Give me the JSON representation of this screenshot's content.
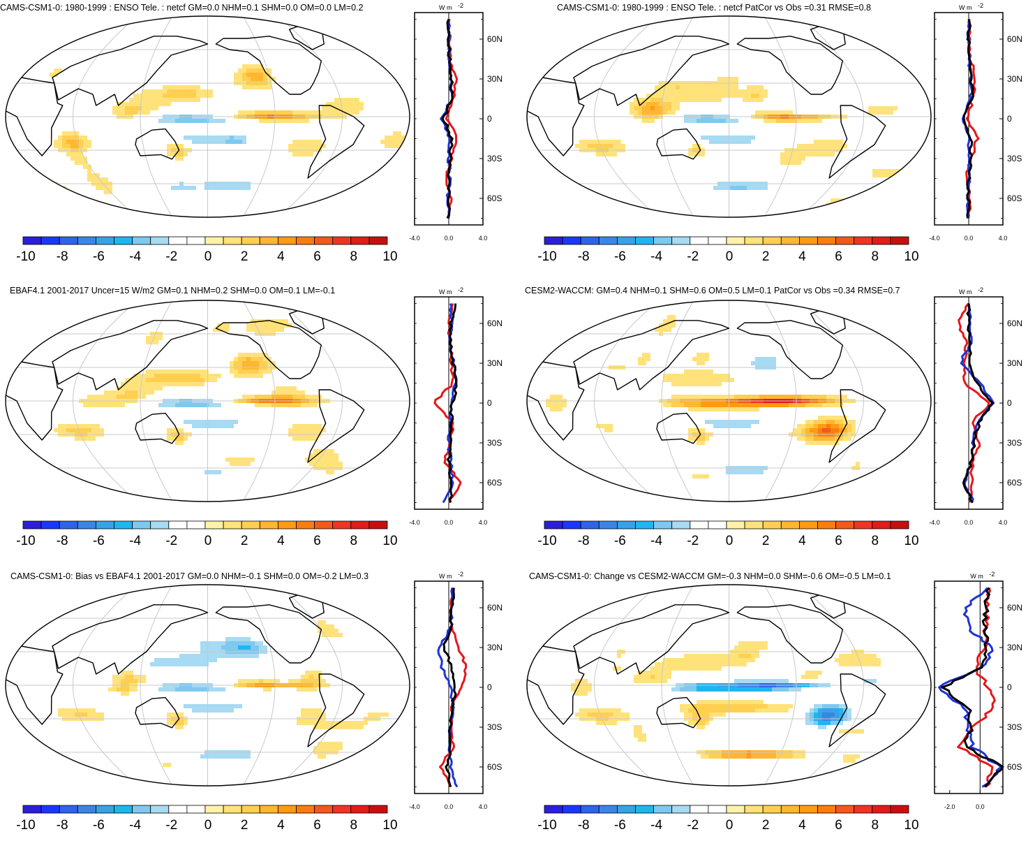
{
  "colors": {
    "red": "#e8141b",
    "blue": "#1e32d6",
    "black": "#000000",
    "grid": "#c8c8c8",
    "colorbar": [
      "#2b1fd9",
      "#1a37ff",
      "#2f63e8",
      "#3b85e6",
      "#37a3e6",
      "#1fb6f0",
      "#7fc8ef",
      "#a7daf3",
      "#ffffff",
      "#ffffff",
      "#fff2a8",
      "#ffe27a",
      "#ffcf52",
      "#ffb631",
      "#ff9b12",
      "#f97d0f",
      "#f2591a",
      "#ef3424",
      "#e21b1b",
      "#c7100e"
    ]
  },
  "colorbar_labels": [
    "-10",
    "-8",
    "-6",
    "-4",
    "-2",
    "0",
    "2",
    "4",
    "6",
    "8",
    "10"
  ],
  "lat_labels": [
    "60N",
    "30N",
    "0",
    "30S",
    "60S"
  ],
  "units": "W m",
  "units_sup": "-2",
  "panels": [
    {
      "id": "p1",
      "title": "CAMS-CSM1-0: 1980-1999 : ENSO Tele. : netcf GM=0.0 NHM=0.1 SHM=0.0 OM=0.0 LM=0.2",
      "xticks": [
        "-4.0",
        "0.0",
        "4.0"
      ]
    },
    {
      "id": "p2",
      "title": "CAMS-CSM1-0: 1980-1999 : ENSO Tele. : netcf PatCor vs Obs =0.31 RMSE=0.8",
      "xticks": [
        "-4.0",
        "0.0",
        "4.0"
      ]
    },
    {
      "id": "p3",
      "title": "EBAF4.1 2001-2017 Uncer=15 W/m2 GM=0.1 NHM=0.2 SHM=0.0 OM=0.1 LM=-0.1",
      "xticks": [
        "-4.0",
        "0.0",
        "4.0"
      ]
    },
    {
      "id": "p4",
      "title": "CESM2-WACCM: GM=0.4 NHM=0.1 SHM=0.6 OM=0.5 LM=0.1 PatCor vs Obs =0.34 RMSE=0.7",
      "xticks": [
        "-4.0",
        "0.0",
        "4.0"
      ]
    },
    {
      "id": "p5",
      "title": "CAMS-CSM1-0: Bias vs EBAF4.1 2001-2017 GM=0.0 NHM=-0.1 SHM=0.0 OM=-0.2 LM=0.3",
      "xticks": [
        "-4.0",
        "0.0",
        "4.0"
      ]
    },
    {
      "id": "p6",
      "title": "CAMS-CSM1-0: Change vs CESM2-WACCM GM=-0.3 NHM=0.0 SHM=-0.6 OM=-0.5 LM=0.1",
      "xticks": [
        "-2.0",
        "0.0"
      ]
    }
  ],
  "chart_data": [
    {
      "type": "heatmap",
      "title": "CAMS-CSM1-0: 1980-1999 : ENSO Tele. : netcf GM=0.0 NHM=0.1 SHM=0.0 OM=0.0 LM=0.2",
      "projection": "robinson",
      "colorbar_range": [
        -10,
        10
      ],
      "zonal_profile": {
        "type": "line",
        "ylabel": "W m-2",
        "xlim": [
          -4,
          4
        ],
        "ylim": [
          -80,
          80
        ],
        "lat": [
          -75,
          -60,
          -45,
          -30,
          -15,
          0,
          15,
          30,
          45,
          60,
          75
        ],
        "series": [
          {
            "color": "red",
            "values": [
              0.0,
              0.2,
              -0.3,
              0.3,
              1.0,
              -0.2,
              0.5,
              0.8,
              0.2,
              0.1,
              0.1
            ]
          },
          {
            "color": "blue",
            "values": [
              0.0,
              -0.1,
              0.1,
              0.0,
              0.1,
              -0.8,
              0.3,
              0.2,
              0.1,
              0.0,
              0.0
            ]
          },
          {
            "color": "black",
            "values": [
              0.0,
              0.0,
              0.0,
              0.2,
              0.3,
              -0.6,
              0.4,
              0.3,
              0.1,
              0.0,
              0.0
            ]
          }
        ]
      }
    },
    {
      "type": "heatmap",
      "title": "CAMS-CSM1-0: 1980-1999 : ENSO Tele. : netcf PatCor vs Obs =0.31 RMSE=0.8",
      "projection": "robinson",
      "colorbar_range": [
        -10,
        10
      ],
      "zonal_profile": {
        "type": "line",
        "ylabel": "W m-2",
        "xlim": [
          -4,
          4
        ],
        "ylim": [
          -80,
          80
        ],
        "lat": [
          -75,
          -60,
          -45,
          -30,
          -15,
          0,
          15,
          30,
          45,
          60,
          75
        ],
        "series": [
          {
            "color": "red",
            "values": [
              0.0,
              0.2,
              -0.3,
              0.3,
              1.0,
              -0.2,
              0.5,
              0.8,
              0.2,
              0.1,
              0.1
            ]
          },
          {
            "color": "blue",
            "values": [
              0.0,
              -0.1,
              0.1,
              0.0,
              0.1,
              -0.8,
              0.3,
              0.2,
              0.1,
              0.0,
              0.0
            ]
          },
          {
            "color": "black",
            "values": [
              0.0,
              0.0,
              0.0,
              0.2,
              0.3,
              -0.6,
              0.4,
              0.3,
              0.1,
              0.0,
              0.0
            ]
          }
        ]
      }
    },
    {
      "type": "heatmap",
      "title": "EBAF4.1 2001-2017 Uncer=15 W/m2 GM=0.1 NHM=0.2 SHM=0.0 OM=0.1 LM=-0.1",
      "projection": "robinson",
      "colorbar_range": [
        -10,
        10
      ],
      "zonal_profile": {
        "type": "line",
        "ylabel": "W m-2",
        "xlim": [
          -4,
          4
        ],
        "ylim": [
          -80,
          80
        ],
        "lat": [
          -75,
          -60,
          -45,
          -30,
          -15,
          0,
          15,
          30,
          45,
          60,
          75
        ],
        "series": [
          {
            "color": "red",
            "values": [
              0.0,
              1.5,
              -0.5,
              0.1,
              0.6,
              -1.8,
              0.5,
              0.3,
              0.2,
              0.0,
              0.5
            ]
          },
          {
            "color": "blue",
            "values": [
              -0.5,
              0.5,
              0.2,
              0.0,
              0.2,
              0.3,
              0.8,
              0.6,
              0.0,
              0.3,
              0.2
            ]
          },
          {
            "color": "black",
            "values": [
              0.2,
              0.3,
              0.0,
              0.2,
              0.3,
              0.4,
              1.0,
              0.5,
              0.2,
              0.2,
              0.8
            ]
          }
        ]
      }
    },
    {
      "type": "heatmap",
      "title": "CESM2-WACCM: GM=0.4 NHM=0.1 SHM=0.6 OM=0.5 LM=0.1 PatCor vs Obs =0.34 RMSE=0.7",
      "projection": "robinson",
      "colorbar_range": [
        -10,
        10
      ],
      "zonal_profile": {
        "type": "line",
        "ylabel": "W m-2",
        "xlim": [
          -4,
          4
        ],
        "ylim": [
          -80,
          80
        ],
        "lat": [
          -75,
          -60,
          -45,
          -30,
          -15,
          0,
          15,
          30,
          45,
          60,
          75
        ],
        "series": [
          {
            "color": "red",
            "values": [
              0.2,
              0.3,
              0.4,
              1.3,
              0.3,
              2.5,
              -0.5,
              -0.4,
              -0.3,
              -1.2,
              0.0
            ]
          },
          {
            "color": "blue",
            "values": [
              0.5,
              -0.4,
              0.3,
              0.5,
              1.0,
              2.8,
              1.5,
              -1.0,
              0.2,
              0.2,
              0.0
            ]
          },
          {
            "color": "black",
            "values": [
              0.5,
              -0.6,
              0.3,
              0.6,
              1.2,
              2.7,
              1.0,
              0.1,
              0.1,
              0.0,
              0.0
            ]
          }
        ]
      }
    },
    {
      "type": "heatmap",
      "title": "CAMS-CSM1-0: Bias vs EBAF4.1 2001-2017 GM=0.0 NHM=-0.1 SHM=0.0 OM=-0.2 LM=0.3",
      "projection": "robinson",
      "colorbar_range": [
        -10,
        10
      ],
      "zonal_profile": {
        "type": "line",
        "ylabel": "W m-2",
        "xlim": [
          -4,
          4
        ],
        "ylim": [
          -80,
          80
        ],
        "lat": [
          -75,
          -60,
          -45,
          -30,
          -15,
          0,
          15,
          30,
          45,
          60,
          75
        ],
        "series": [
          {
            "color": "red",
            "values": [
              0.2,
              -1.0,
              0.5,
              0.3,
              0.4,
              1.5,
              2.0,
              1.2,
              0.3,
              0.2,
              0.5
            ]
          },
          {
            "color": "blue",
            "values": [
              1.0,
              0.2,
              0.1,
              0.2,
              0.5,
              0.3,
              -0.8,
              -1.2,
              0.3,
              0.2,
              0.4
            ]
          },
          {
            "color": "black",
            "values": [
              0.3,
              -0.2,
              0.2,
              0.2,
              0.4,
              0.8,
              0.4,
              -0.6,
              0.2,
              0.3,
              0.6
            ]
          }
        ]
      }
    },
    {
      "type": "heatmap",
      "title": "CAMS-CSM1-0: Change vs CESM2-WACCM GM=-0.3 NHM=0.0 SHM=-0.6 OM=-0.5 LM=0.1",
      "projection": "robinson",
      "colorbar_range": [
        -10,
        10
      ],
      "zonal_profile": {
        "type": "line",
        "ylabel": "W m-2",
        "xlim": [
          -3,
          1.5
        ],
        "ylim": [
          -80,
          80
        ],
        "lat": [
          -75,
          -60,
          -45,
          -30,
          -15,
          0,
          15,
          30,
          45,
          60,
          75
        ],
        "series": [
          {
            "color": "red",
            "values": [
              0.5,
              0.8,
              -1.3,
              -0.5,
              1.0,
              0.5,
              -0.3,
              0.3,
              0.4,
              0.5,
              0.6
            ]
          },
          {
            "color": "blue",
            "values": [
              0.3,
              1.3,
              -0.5,
              -0.8,
              -1.0,
              -2.8,
              0.2,
              0.8,
              -0.8,
              -1.0,
              0.5
            ]
          },
          {
            "color": "black",
            "values": [
              0.3,
              1.5,
              -1.0,
              -0.6,
              -0.8,
              -2.5,
              0.1,
              0.5,
              0.3,
              0.4,
              0.6
            ]
          }
        ]
      }
    }
  ]
}
